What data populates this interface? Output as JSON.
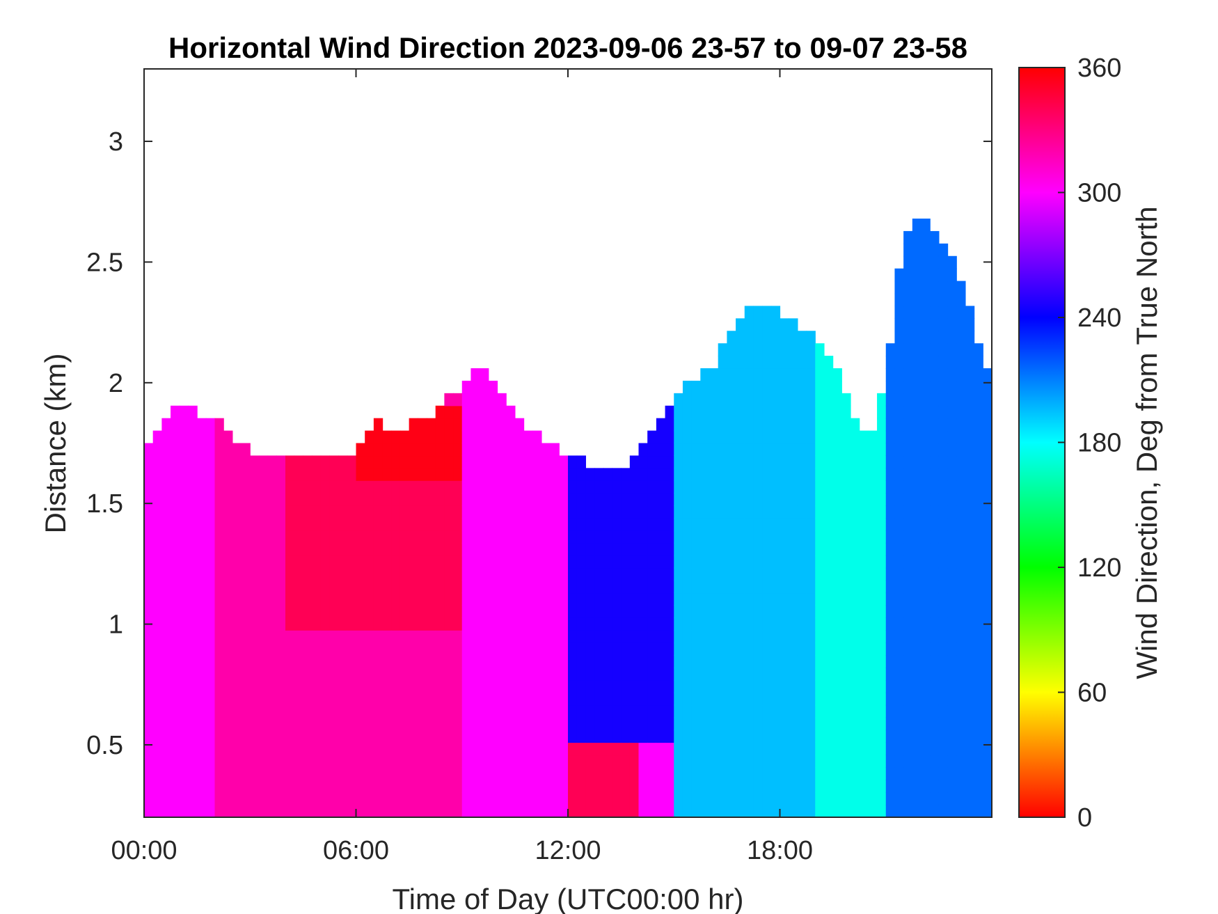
{
  "chart_data": {
    "type": "heatmap",
    "title": "Horizontal Wind Direction 2023-09-06 23-57 to 09-07 23-58",
    "xlabel": "Time of Day (UTC00:00 hr)",
    "ylabel": "Distance (km)",
    "colorbar_label": "Wind Direction, Deg from True North",
    "x_ticks": [
      "00:00",
      "06:00",
      "12:00",
      "18:00"
    ],
    "x_tick_values": [
      0,
      6,
      12,
      18
    ],
    "xlim": [
      0,
      24
    ],
    "y_ticks": [
      "0.5",
      "1",
      "1.5",
      "2",
      "2.5",
      "3"
    ],
    "y_tick_values": [
      0.5,
      1,
      1.5,
      2,
      2.5,
      3
    ],
    "ylim": [
      0.2,
      3.3
    ],
    "colorbar_ticks": [
      "0",
      "60",
      "120",
      "180",
      "240",
      "300",
      "360"
    ],
    "colorbar_tick_values": [
      0,
      60,
      120,
      180,
      240,
      300,
      360
    ],
    "clim": [
      0,
      360
    ],
    "colormap": [
      "#ff0000",
      "#ffff00",
      "#00ff00",
      "#00ffff",
      "#0000ff",
      "#ff00ff",
      "#ff0000"
    ],
    "grid": false,
    "top_height_km": {
      "x": [
        0,
        1,
        2,
        3,
        4,
        5,
        6,
        6.5,
        7,
        8,
        9,
        9.5,
        10,
        11,
        12,
        13,
        13.5,
        14,
        15,
        16,
        17,
        18,
        19,
        19.5,
        20,
        20.5,
        21,
        21.5,
        22,
        23,
        24
      ],
      "y": [
        1.75,
        1.9,
        1.85,
        1.72,
        1.68,
        1.72,
        1.72,
        1.85,
        1.8,
        1.85,
        2.0,
        2.1,
        1.95,
        1.8,
        1.7,
        1.65,
        1.62,
        1.7,
        1.95,
        2.05,
        2.3,
        2.3,
        2.2,
        2.1,
        1.9,
        1.75,
        2.05,
        2.6,
        2.7,
        2.5,
        2.0
      ]
    },
    "direction_regions": [
      {
        "x": [
          0,
          2
        ],
        "y": [
          0.2,
          2.0
        ],
        "deg": 300
      },
      {
        "x": [
          2,
          9
        ],
        "y": [
          0.2,
          2.0
        ],
        "deg": 320
      },
      {
        "x": [
          4,
          9
        ],
        "y": [
          1.0,
          1.9
        ],
        "deg": 340
      },
      {
        "x": [
          6,
          9
        ],
        "y": [
          1.6,
          1.9
        ],
        "deg": 355
      },
      {
        "x": [
          9,
          12
        ],
        "y": [
          0.2,
          2.2
        ],
        "deg": 300
      },
      {
        "x": [
          12,
          15
        ],
        "y": [
          0.5,
          2.0
        ],
        "deg": 245
      },
      {
        "x": [
          12,
          14
        ],
        "y": [
          0.2,
          0.5
        ],
        "deg": 340
      },
      {
        "x": [
          15,
          19
        ],
        "y": [
          0.2,
          2.3
        ],
        "deg": 195
      },
      {
        "x": [
          19,
          21
        ],
        "y": [
          0.2,
          2.2
        ],
        "deg": 175
      },
      {
        "x": [
          21,
          24
        ],
        "y": [
          0.2,
          2.7
        ],
        "deg": 215
      }
    ]
  }
}
